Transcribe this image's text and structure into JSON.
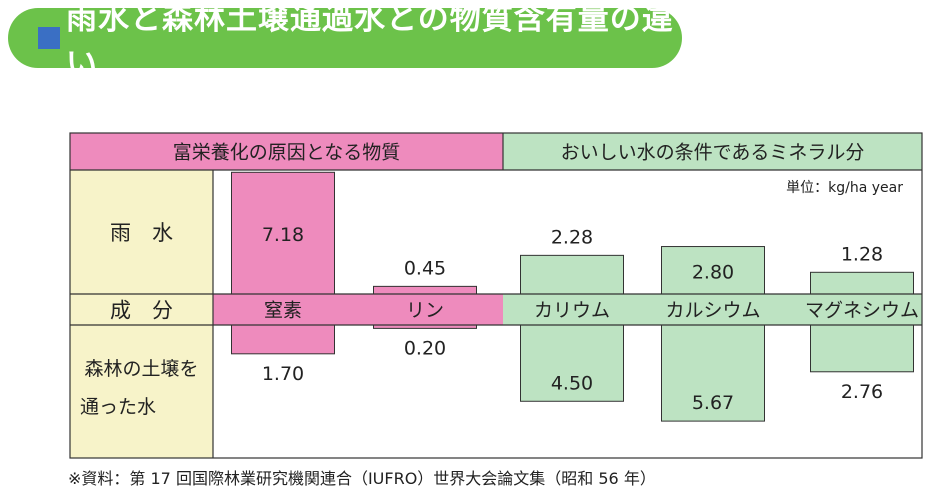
{
  "title": "雨水と森林土壌通過水との物質含有量の違い",
  "colors": {
    "title_bg": "#6cc24a",
    "title_square": "#3a6fc4",
    "pink": "#ee8bbd",
    "green": "#bde3c2",
    "row_label_bg": "#f7f3c9",
    "border": "#333333"
  },
  "chart_data": {
    "type": "bar",
    "unit": "単位：kg/ha year",
    "groups": [
      {
        "label": "富栄養化の原因となる物質",
        "categories": [
          "窒素",
          "リン"
        ],
        "color": "pink"
      },
      {
        "label": "おいしい水の条件であるミネラル分",
        "categories": [
          "カリウム",
          "カルシウム",
          "マグネシウム"
        ],
        "color": "green"
      }
    ],
    "row_labels": {
      "rain": "雨　水",
      "component": "成　分",
      "forest_line1": "森林の土壌を",
      "forest_line2": "通った水"
    },
    "categories": [
      "窒素",
      "リン",
      "カリウム",
      "カルシウム",
      "マグネシウム"
    ],
    "series": [
      {
        "name": "雨　水",
        "values": [
          7.18,
          0.45,
          2.28,
          2.8,
          1.28
        ],
        "labels": [
          "7.18",
          "0.45",
          "2.28",
          "2.80",
          "1.28"
        ]
      },
      {
        "name": "森林の土壌を通った水",
        "values": [
          1.7,
          0.2,
          4.5,
          5.67,
          2.76
        ],
        "labels": [
          "1.70",
          "0.20",
          "4.50",
          "5.67",
          "2.76"
        ]
      }
    ]
  },
  "footnote": "※資料：第 17 回国際林業研究機関連合（IUFRO）世界大会論文集（昭和 56 年）"
}
